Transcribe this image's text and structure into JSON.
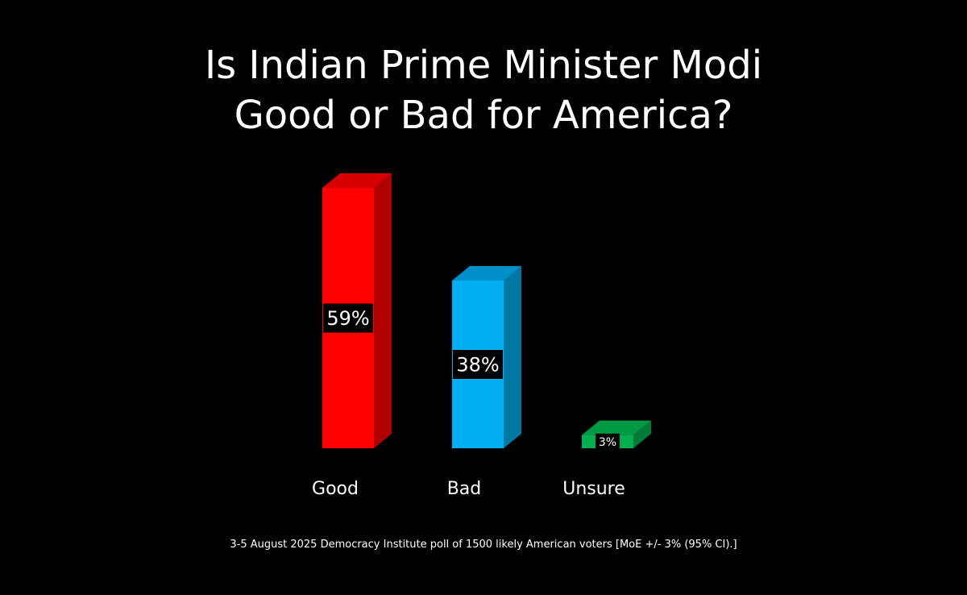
{
  "title_lines": [
    "Is Indian Prime Minister Modi",
    "Good or Bad for America?"
  ],
  "footnote": "3-5 August 2025 Democracy Institute poll of 1500 likely American voters [MoE +/- 3% (95% CI).]",
  "chart_data": {
    "type": "bar",
    "title": "Is Indian Prime Minister Modi Good or Bad for America?",
    "categories": [
      "Good",
      "Bad",
      "Unsure"
    ],
    "values": [
      59,
      38,
      3
    ],
    "value_labels": [
      "59%",
      "38%",
      "3%"
    ],
    "unit": "%",
    "colors": {
      "Good": {
        "front": "#ff0000",
        "side": "#b00000",
        "top": "#d60000"
      },
      "Bad": {
        "front": "#00b0f0",
        "side": "#0078a6",
        "top": "#0090c8"
      },
      "Unsure": {
        "front": "#00b050",
        "side": "#007a37",
        "top": "#009a45"
      }
    },
    "xlabel": "",
    "ylabel": "",
    "grid": false,
    "legend": "none",
    "style": "3d-column"
  }
}
